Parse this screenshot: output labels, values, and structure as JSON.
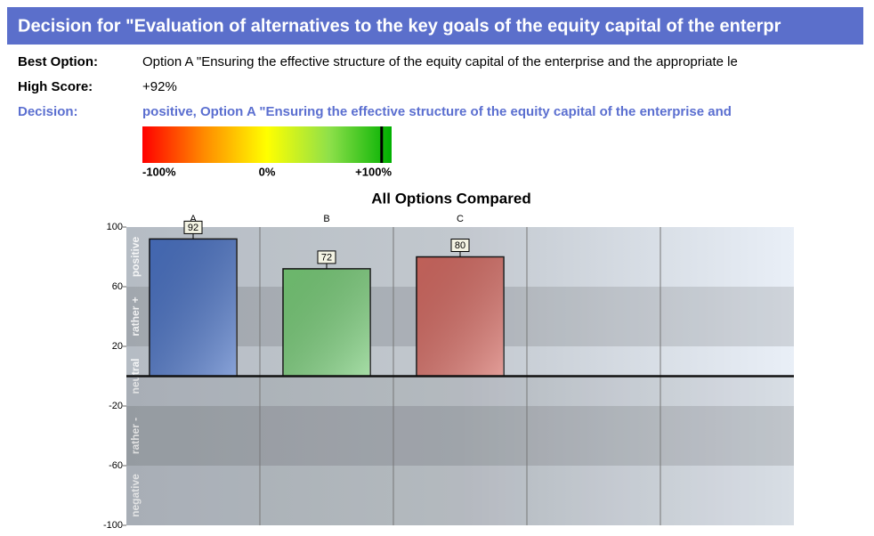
{
  "header": {
    "title": "Decision for  \"Evaluation of alternatives to the key goals of the equity capital of the enterpr",
    "rows": [
      {
        "label": "Best Option:",
        "value": "Option A \"Ensuring the effective structure of the equity capital of the enterprise  and the appropriate le"
      },
      {
        "label": "High Score:",
        "value": "+92%"
      },
      {
        "label": "Decision:",
        "value": "positive, Option A \"Ensuring the effective structure of the equity capital of the enterprise  and"
      }
    ],
    "scale": {
      "ticks": [
        {
          "value": -100,
          "label": "-100%"
        },
        {
          "value": 0,
          "label": "0%"
        },
        {
          "value": 100,
          "label": "+100%"
        }
      ],
      "marker": 92
    }
  },
  "chart_data": {
    "type": "bar",
    "title": "All Options Compared",
    "categories": [
      "A",
      "B",
      "C"
    ],
    "values": [
      92,
      72,
      80
    ],
    "colors": [
      "#4a72c4",
      "#78cc78",
      "#d46a62"
    ],
    "ylim": [
      -100,
      100
    ],
    "yticks": [
      100,
      60,
      20,
      -20,
      -60,
      -100
    ],
    "bands": [
      {
        "label": "positive",
        "from": 60,
        "to": 100
      },
      {
        "label": "rather +",
        "from": 20,
        "to": 60
      },
      {
        "label": "neutral",
        "from": -20,
        "to": 20
      },
      {
        "label": "rather -",
        "from": -60,
        "to": -20
      },
      {
        "label": "negative",
        "from": -100,
        "to": -60
      }
    ]
  }
}
